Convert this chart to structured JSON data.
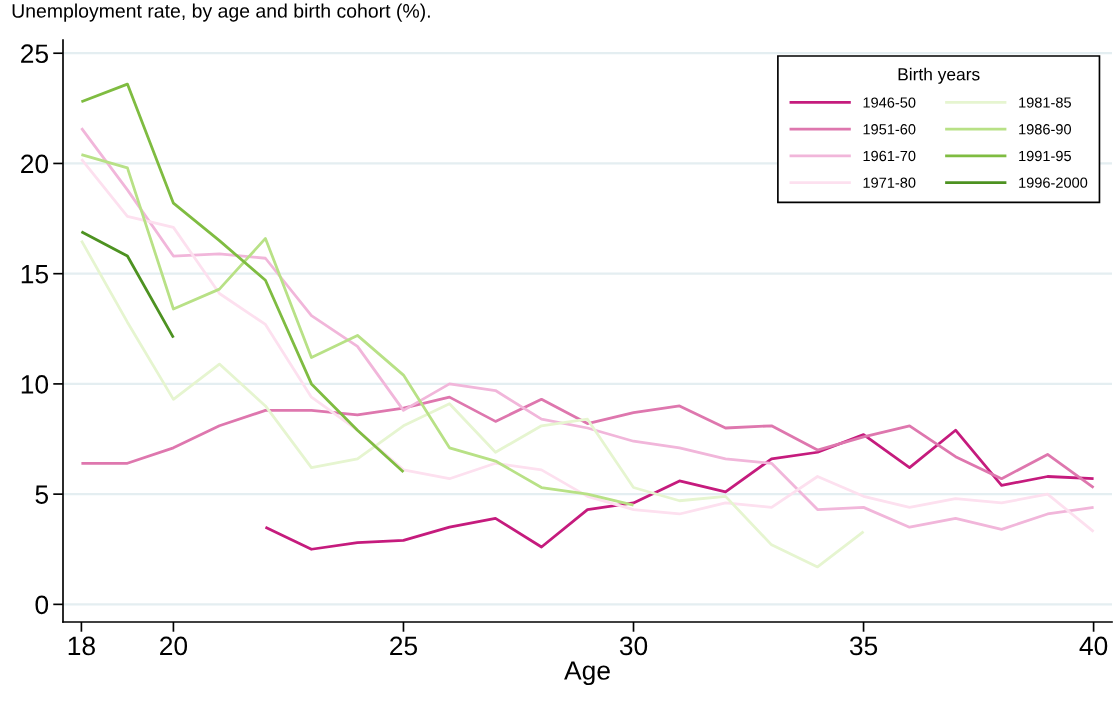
{
  "chart_data": {
    "type": "line",
    "title": "Unemployment rate, by age and birth cohort (%).",
    "xlabel": "Age",
    "legend_title": "Birth years",
    "xlim": [
      17.6,
      40.4
    ],
    "ylim": [
      -0.8,
      25.6
    ],
    "xticks": [
      18,
      20,
      25,
      30,
      35,
      40
    ],
    "yticks": [
      0,
      5,
      10,
      15,
      20,
      25
    ],
    "grid": "y",
    "legend": "top right",
    "line_style": "solid",
    "series": [
      {
        "name": "1946-50",
        "color": "#c51b7d",
        "x": [
          22,
          23,
          24,
          25,
          26,
          27,
          28,
          29,
          30,
          31,
          32,
          33,
          34,
          35,
          36,
          37,
          38,
          39,
          40
        ],
        "values": [
          3.5,
          2.5,
          2.8,
          2.9,
          3.5,
          3.9,
          2.6,
          4.3,
          4.6,
          5.6,
          5.1,
          6.6,
          6.9,
          7.7,
          6.2,
          7.9,
          5.4,
          5.8,
          5.7
        ]
      },
      {
        "name": "1951-60",
        "color": "#de77ae",
        "x": [
          18,
          19,
          20,
          21,
          22,
          23,
          24,
          25,
          26,
          27,
          28,
          29,
          30,
          31,
          32,
          33,
          34,
          35,
          36,
          37,
          38,
          39,
          40
        ],
        "values": [
          6.4,
          6.4,
          7.1,
          8.1,
          8.8,
          8.8,
          8.6,
          8.9,
          9.4,
          8.3,
          9.3,
          8.2,
          8.7,
          9.0,
          8.0,
          8.1,
          7.0,
          7.6,
          8.1,
          6.7,
          5.7,
          6.8,
          5.3
        ]
      },
      {
        "name": "1961-70",
        "color": "#f1b6da",
        "x": [
          18,
          19,
          20,
          21,
          22,
          23,
          24,
          25,
          26,
          27,
          28,
          29,
          30,
          31,
          32,
          33,
          34,
          35,
          36,
          37,
          38,
          39,
          40
        ],
        "values": [
          21.6,
          18.8,
          15.8,
          15.9,
          15.7,
          13.1,
          11.7,
          8.8,
          10.0,
          9.7,
          8.4,
          8.0,
          7.4,
          7.1,
          6.6,
          6.4,
          4.3,
          4.4,
          3.5,
          3.9,
          3.4,
          4.1,
          4.4
        ]
      },
      {
        "name": "1971-80",
        "color": "#fde0ef",
        "x": [
          18,
          19,
          20,
          21,
          22,
          23,
          24,
          25,
          26,
          27,
          28,
          29,
          30,
          31,
          32,
          33,
          34,
          35,
          36,
          37,
          38,
          39,
          40
        ],
        "values": [
          20.2,
          17.6,
          17.1,
          14.1,
          12.7,
          9.4,
          7.9,
          6.1,
          5.7,
          6.4,
          6.1,
          4.9,
          4.3,
          4.1,
          4.6,
          4.4,
          5.8,
          4.9,
          4.4,
          4.8,
          4.6,
          5.0,
          3.3
        ]
      },
      {
        "name": "1981-85",
        "color": "#e6f5d0",
        "x": [
          18,
          19,
          20,
          21,
          22,
          23,
          24,
          25,
          26,
          27,
          28,
          29,
          30,
          31,
          32,
          33,
          34,
          35
        ],
        "values": [
          16.5,
          12.8,
          9.3,
          10.9,
          9.0,
          6.2,
          6.6,
          8.1,
          9.1,
          6.9,
          8.1,
          8.4,
          5.3,
          4.7,
          4.9,
          2.7,
          1.7,
          3.3
        ]
      },
      {
        "name": "1986-90",
        "color": "#b8e186",
        "x": [
          18,
          19,
          20,
          21,
          22,
          23,
          24,
          25,
          26,
          27,
          28,
          29,
          30
        ],
        "values": [
          20.4,
          19.8,
          13.4,
          14.3,
          16.6,
          11.2,
          12.2,
          10.4,
          7.1,
          6.5,
          5.3,
          5.0,
          4.5
        ]
      },
      {
        "name": "1991-95",
        "color": "#7fbc41",
        "x": [
          18,
          19,
          20,
          21,
          22,
          23,
          24,
          25
        ],
        "values": [
          22.8,
          23.6,
          18.2,
          16.5,
          14.7,
          10.0,
          7.9,
          6.0
        ]
      },
      {
        "name": "1996-2000",
        "color": "#4d9221",
        "x": [
          18,
          19,
          20
        ],
        "values": [
          16.9,
          15.8,
          12.1
        ]
      }
    ]
  }
}
